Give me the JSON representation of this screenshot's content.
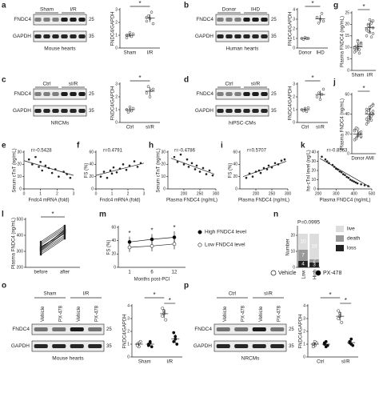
{
  "blots": [
    {
      "panel": "a",
      "lanes": [
        "Sham",
        "I/R"
      ],
      "rows": [
        "FNDC4",
        "GAPDH"
      ],
      "markers": [
        "25",
        "35"
      ],
      "caption": "Mouse hearts"
    },
    {
      "panel": "b",
      "lanes": [
        "Donor",
        "IHD"
      ],
      "rows": [
        "FNDC4",
        "GAPDH"
      ],
      "markers": [
        "25",
        "35"
      ],
      "caption": "Human hearts"
    },
    {
      "panel": "c",
      "lanes": [
        "Ctrl",
        "sI/R"
      ],
      "rows": [
        "FNDC4",
        "GAPDH"
      ],
      "markers": [
        "25",
        "35"
      ],
      "caption": "NRCMs"
    },
    {
      "panel": "d",
      "lanes": [
        "Ctrl",
        "sI/R"
      ],
      "rows": [
        "FNDC4",
        "GAPDH"
      ],
      "markers": [
        "25",
        "35"
      ],
      "caption": "hiPSC-CMs"
    },
    {
      "panel": "o",
      "groups": [
        "Sham",
        "I/R"
      ],
      "lanes": [
        "Vehicle",
        "PX-478",
        "Vehicle",
        "PX-478"
      ],
      "rows": [
        "FNDC4",
        "GAPDH"
      ],
      "markers": [
        "25",
        "35"
      ],
      "caption": "Mouse hearts"
    },
    {
      "panel": "p",
      "groups": [
        "Ctrl",
        "sI/R"
      ],
      "lanes": [
        "Vehicle",
        "PX-478",
        "Vehicle",
        "PX-478"
      ],
      "rows": [
        "FNDC4",
        "GAPDH"
      ],
      "markers": [
        "25",
        "35"
      ],
      "caption": "NRCMs"
    }
  ],
  "chart_data": [
    {
      "type": "dot",
      "ylabel": "FNDC4/GAPDH",
      "ylim": [
        0,
        3
      ],
      "yticks": [
        0,
        1,
        2,
        3
      ],
      "significance": "*",
      "groups": [
        {
          "name": "Sham",
          "values": [
            0.8,
            1.0,
            1.2,
            0.9,
            1.1,
            1.0
          ],
          "mean": 1.0,
          "sd": 0.15
        },
        {
          "name": "I/R",
          "values": [
            2.1,
            2.5,
            2.3,
            2.8,
            1.9,
            2.4
          ],
          "mean": 2.33,
          "sd": 0.3
        }
      ]
    },
    {
      "type": "dot",
      "ylabel": "FNDC4/GAPDH",
      "ylim": [
        0,
        4
      ],
      "yticks": [
        0,
        1,
        2,
        3,
        4
      ],
      "significance": "*",
      "groups": [
        {
          "name": "Donor",
          "values": [
            1.0,
            0.9,
            1.1,
            1.0,
            1.0
          ],
          "mean": 1.0,
          "sd": 0.07
        },
        {
          "name": "IHD",
          "values": [
            3.2,
            2.6,
            3.0,
            3.6,
            2.8
          ],
          "mean": 3.04,
          "sd": 0.38
        }
      ]
    },
    {
      "type": "dot",
      "panel": "g",
      "ylabel": "Plasma FNDC4 (ng/mL)",
      "ylim": [
        0,
        25
      ],
      "yticks": [
        0,
        5,
        10,
        15,
        20,
        25
      ],
      "significance": "*",
      "groups": [
        {
          "name": "Sham",
          "values": [
            8,
            9,
            10,
            11,
            12,
            9.5,
            10.5,
            13,
            7.5,
            11.5,
            10,
            8.5,
            12.5,
            9,
            11
          ],
          "mean": 10.2,
          "sd": 1.6
        },
        {
          "name": "I/R",
          "values": [
            15,
            17,
            19,
            21,
            16,
            18,
            20,
            22,
            14.5,
            18.5,
            17.5,
            19.5,
            16.5,
            20.5,
            21.5
          ],
          "mean": 18.5,
          "sd": 2.2
        }
      ]
    },
    {
      "type": "dot",
      "ylabel": "FNDC4/GAPDH",
      "ylim": [
        0,
        3
      ],
      "yticks": [
        0,
        1,
        2,
        3
      ],
      "significance": "*",
      "groups": [
        {
          "name": "Ctrl",
          "values": [
            1.0,
            0.8,
            1.2,
            0.9,
            1.1
          ],
          "mean": 1.0,
          "sd": 0.15
        },
        {
          "name": "sI/R",
          "values": [
            2.3,
            2.8,
            2.0,
            2.5,
            2.6
          ],
          "mean": 2.44,
          "sd": 0.3
        }
      ]
    },
    {
      "type": "dot",
      "ylabel": "FNDC4/GAPDH",
      "ylim": [
        0,
        3
      ],
      "yticks": [
        0,
        1,
        2,
        3
      ],
      "significance": "*",
      "groups": [
        {
          "name": "Ctrl",
          "values": [
            1.0,
            0.9,
            1.1,
            0.85,
            1.15
          ],
          "mean": 1.0,
          "sd": 0.12
        },
        {
          "name": "sI/R",
          "values": [
            2.0,
            2.3,
            1.8,
            2.2,
            2.6
          ],
          "mean": 2.18,
          "sd": 0.3
        }
      ]
    },
    {
      "type": "dot",
      "panel": "j",
      "ylabel": "Plasma FNDC4 (ng/mL)",
      "ylim": [
        0,
        60
      ],
      "yticks": [
        0,
        20,
        40,
        60
      ],
      "significance": "*",
      "groups": [
        {
          "name": "Donor",
          "values": [
            14,
            16,
            18,
            20,
            22,
            24,
            26,
            19,
            21,
            17,
            23,
            15,
            25,
            20,
            18
          ],
          "mean": 20,
          "sd": 3.5
        },
        {
          "name": "AMI",
          "values": [
            30,
            33,
            36,
            38,
            40,
            42,
            44,
            46,
            48,
            50,
            35,
            37,
            39,
            41,
            43,
            45,
            32,
            47,
            34,
            49
          ],
          "mean": 40,
          "sd": 6
        }
      ]
    },
    {
      "type": "scatter",
      "panel": "e",
      "annotation": "r=-0.5428",
      "xlabel": "Fndc4 mRNA (fold)",
      "ylabel": "Serum cTnT (ng/mL)",
      "xlim": [
        0,
        3
      ],
      "xticks": [
        0,
        1,
        2,
        3
      ],
      "ylim": [
        0,
        30
      ],
      "yticks": [
        0,
        10,
        20,
        30
      ],
      "x": [
        0.3,
        0.5,
        0.7,
        0.9,
        1.0,
        1.1,
        1.3,
        1.5,
        1.7,
        1.9,
        2.1,
        2.4,
        2.6,
        2.8
      ],
      "y": [
        24,
        20,
        26,
        18,
        22,
        15,
        19,
        17,
        13,
        16,
        10,
        14,
        12,
        9
      ],
      "fit": {
        "x": [
          0,
          3
        ],
        "y": [
          23,
          11
        ]
      }
    },
    {
      "type": "scatter",
      "panel": "f",
      "annotation": "r=0.4791",
      "xlabel": "Fndc4 mRNA (fold)",
      "ylabel": "FS (%)",
      "xlim": [
        0,
        3
      ],
      "xticks": [
        0,
        1,
        2,
        3
      ],
      "ylim": [
        0,
        60
      ],
      "yticks": [
        0,
        20,
        40,
        60
      ],
      "x": [
        0.3,
        0.5,
        0.7,
        0.9,
        1.0,
        1.1,
        1.3,
        1.5,
        1.7,
        1.9,
        2.1,
        2.4,
        2.6,
        2.8
      ],
      "y": [
        20,
        28,
        18,
        30,
        25,
        35,
        27,
        33,
        40,
        31,
        38,
        45,
        36,
        42
      ],
      "fit": {
        "x": [
          0,
          3
        ],
        "y": [
          22,
          42
        ]
      }
    },
    {
      "type": "scatter",
      "panel": "h",
      "annotation": "r=-0.4786",
      "xlabel": "Plasma FNDC4 (ng/mL)",
      "ylabel": "Serum cTnT (ng/mL)",
      "xlim": [
        150,
        300
      ],
      "xticks": [
        200,
        250,
        300
      ],
      "ylim": [
        0,
        30
      ],
      "yticks": [
        0,
        10,
        20,
        30
      ],
      "x": [
        170,
        180,
        190,
        200,
        210,
        215,
        225,
        235,
        240,
        250,
        260,
        270,
        280,
        290
      ],
      "y": [
        26,
        22,
        28,
        20,
        24,
        18,
        21,
        16,
        19,
        14,
        17,
        12,
        15,
        11
      ],
      "fit": {
        "x": [
          160,
          295
        ],
        "y": [
          25,
          12
        ]
      }
    },
    {
      "type": "scatter",
      "panel": "i",
      "annotation": "r=0.5707",
      "xlabel": "Plasma FNDC4 (ng/mL)",
      "ylabel": "FS (%)",
      "xlim": [
        150,
        300
      ],
      "xticks": [
        200,
        250,
        300
      ],
      "ylim": [
        0,
        60
      ],
      "yticks": [
        0,
        20,
        40,
        60
      ],
      "x": [
        170,
        180,
        190,
        200,
        210,
        215,
        225,
        235,
        240,
        250,
        260,
        270,
        280,
        290
      ],
      "y": [
        18,
        25,
        20,
        28,
        30,
        26,
        34,
        32,
        38,
        35,
        42,
        40,
        46,
        48
      ],
      "fit": {
        "x": [
          160,
          295
        ],
        "y": [
          20,
          45
        ]
      }
    },
    {
      "type": "scatter",
      "panel": "k",
      "annotation": "r=-0.8563",
      "xlabel": "Plasma FNDC4 (ng/mL)",
      "ylabel": "hs-cTnI level (ng/L)",
      "xlim": [
        200,
        500
      ],
      "xticks": [
        200,
        300,
        400,
        500
      ],
      "ylim": [
        0,
        40
      ],
      "yticks": [
        0,
        10,
        20,
        30,
        40
      ],
      "x": [
        220,
        240,
        250,
        260,
        280,
        290,
        300,
        310,
        320,
        330,
        340,
        350,
        360,
        370,
        380,
        390,
        400,
        410,
        420,
        440,
        460,
        480
      ],
      "y": [
        35,
        32,
        30,
        28,
        26,
        24,
        22,
        21,
        19,
        18,
        16,
        15,
        13,
        12,
        10,
        9,
        8,
        7,
        6,
        5,
        4,
        3
      ],
      "fit": {
        "x": [
          210,
          490
        ],
        "y": [
          33,
          2
        ]
      }
    },
    {
      "type": "paired",
      "panel": "l",
      "ylabel": "Plasma FNDC4 (ng/mL)",
      "categories": [
        "before",
        "after"
      ],
      "ylim": [
        200,
        500
      ],
      "yticks": [
        200,
        300,
        400,
        500
      ],
      "significance": "*",
      "values": [
        [
          280,
          300,
          310,
          320,
          330,
          340,
          350,
          290,
          360,
          305,
          315,
          325
        ],
        [
          380,
          400,
          420,
          430,
          410,
          440,
          450,
          390,
          460,
          415,
          435,
          425
        ]
      ]
    },
    {
      "type": "line",
      "panel": "m",
      "ylabel": "FS (%)",
      "xlabel": "Months post-PCI",
      "categories": [
        "1",
        "6",
        "12"
      ],
      "ylim": [
        0,
        60
      ],
      "yticks": [
        0,
        20,
        40,
        60
      ],
      "significance": [
        "*",
        "*",
        "*"
      ],
      "series": [
        {
          "name": "High FNDC4 level",
          "fill": "#000000",
          "values": [
            38,
            42,
            45
          ],
          "errors": [
            8,
            8,
            9
          ]
        },
        {
          "name": "Low FNDC4 level",
          "fill": "#ffffff",
          "values": [
            30,
            32,
            35
          ],
          "errors": [
            7,
            8,
            8
          ]
        }
      ]
    },
    {
      "type": "stacked_bar",
      "panel": "n",
      "ylabel": "Number",
      "annotation": "P=0.0995",
      "categories": [
        "Low",
        "High"
      ],
      "ylim": [
        0,
        25
      ],
      "yticks": [
        0,
        10,
        20
      ],
      "series": [
        {
          "name": "loss",
          "color": "#222222",
          "text": "#ffffff",
          "values": [
            4,
            3
          ]
        },
        {
          "name": "death",
          "color": "#9a9a9a",
          "text": "#ffffff",
          "values": [
            7,
            2
          ]
        },
        {
          "name": "live",
          "color": "#dddddd",
          "text": "#ffffff",
          "values": [
            10,
            16
          ]
        }
      ]
    },
    {
      "type": "grouped_dot",
      "ylabel": "FNDC4/GAPDH",
      "categories": [
        "Sham",
        "I/R"
      ],
      "ylim": [
        0,
        4
      ],
      "yticks": [
        0,
        1,
        2,
        3,
        4
      ],
      "significance": [
        "*",
        "*"
      ],
      "series": [
        {
          "fill": "#ffffff",
          "values": [
            [
              1.0,
              0.8,
              1.2,
              0.9,
              1.1
            ],
            [
              3.2,
              3.6,
              2.9,
              3.8,
              3.4
            ]
          ],
          "mean": [
            1.0,
            3.38
          ],
          "sd": [
            0.15,
            0.35
          ]
        },
        {
          "fill": "#000000",
          "values": [
            [
              0.9,
              1.1,
              0.8,
              1.0,
              1.2
            ],
            [
              1.2,
              1.6,
              1.0,
              1.9,
              1.4
            ]
          ],
          "mean": [
            1.0,
            1.42
          ],
          "sd": [
            0.15,
            0.35
          ]
        }
      ]
    },
    {
      "type": "grouped_dot",
      "ylabel": "FNDC4/GAPDH",
      "categories": [
        "Ctrl",
        "sI/R"
      ],
      "ylim": [
        0,
        4
      ],
      "yticks": [
        0,
        1,
        2,
        3,
        4
      ],
      "significance": [
        "*",
        "*"
      ],
      "series": [
        {
          "name": "Vehicle",
          "fill": "#ffffff",
          "values": [
            [
              1.0,
              0.9,
              1.1,
              0.8,
              1.2
            ],
            [
              3.0,
              3.4,
              2.7,
              3.6,
              3.2
            ]
          ],
          "mean": [
            1.0,
            3.18
          ],
          "sd": [
            0.15,
            0.35
          ]
        },
        {
          "name": "PX-478",
          "fill": "#000000",
          "values": [
            [
              1.0,
              1.2,
              0.9,
              1.1,
              0.8
            ],
            [
              1.1,
              1.4,
              0.9,
              1.2,
              1.0
            ]
          ],
          "mean": [
            1.0,
            1.12
          ],
          "sd": [
            0.15,
            0.18
          ]
        }
      ]
    }
  ]
}
